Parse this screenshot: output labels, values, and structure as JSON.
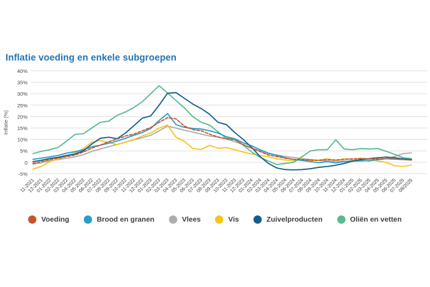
{
  "chart_data": {
    "type": "line",
    "title": "Inflatie voeding en enkele subgroepen",
    "xlabel": "",
    "ylabel": "Inflatie (%)",
    "ylim": [
      -5,
      40
    ],
    "yticks": [
      40,
      35,
      30,
      25,
      20,
      15,
      10,
      5,
      0,
      -5
    ],
    "ytick_labels": [
      "40%",
      "35%",
      "30%",
      "25%",
      "20%",
      "15%",
      "10%",
      "5%",
      "0",
      "-5%"
    ],
    "grid": true,
    "legend_position": "bottom",
    "categories": [
      "11-2021",
      "12-2021",
      "01-2022",
      "02-2022",
      "03-2022",
      "04-2022",
      "05-2022",
      "06-2022",
      "07-2022",
      "08-2022",
      "09-2022",
      "10-2022",
      "11-2022",
      "12-2022",
      "01-2023",
      "02-2023",
      "03-2023",
      "04-2023",
      "05-2023",
      "06-2023",
      "07-2023",
      "08-2023",
      "09-2023",
      "10-2023",
      "11-2023",
      "12-2023",
      "01-2024",
      "02-2024",
      "03-2024",
      "04-2024",
      "05-2024",
      "06-2024",
      "07-2024",
      "08-2024",
      "09-2024",
      "10-2024",
      "11-2024",
      "12-2024",
      "01-2025",
      "02-2025",
      "03-2025",
      "04-2025",
      "05-2025",
      "06-2025",
      "07-2025",
      "08/2025"
    ],
    "series": [
      {
        "name": "Voeding",
        "color": "#C4562B",
        "dashed": true,
        "values": [
          -0.5,
          0.3,
          1.2,
          1.8,
          2.5,
          3.2,
          4.5,
          6.2,
          7.5,
          9.0,
          10.2,
          11.5,
          12.3,
          13.8,
          15.2,
          17.5,
          19.5,
          19.0,
          15.8,
          14.3,
          13.8,
          12.3,
          11.1,
          10.3,
          9.8,
          7.7,
          6.1,
          4.7,
          3.2,
          2.5,
          1.8,
          1.3,
          1.2,
          1.0,
          0.8,
          1.2,
          1.0,
          1.3,
          1.5,
          1.7,
          1.5,
          1.4,
          1.6,
          1.4,
          1.2,
          1.0
        ]
      },
      {
        "name": "Brood en granen",
        "color": "#289DC8",
        "dashed": false,
        "values": [
          1.3,
          1.8,
          2.4,
          3.0,
          4.0,
          4.6,
          5.5,
          6.8,
          7.5,
          8.3,
          9.3,
          10.5,
          11.8,
          13.0,
          14.8,
          18.3,
          21.3,
          16.5,
          15.3,
          14.8,
          14.5,
          13.8,
          12.8,
          11.2,
          10.3,
          8.5,
          7.2,
          5.5,
          4.0,
          3.0,
          2.0,
          1.2,
          0.8,
          0.3,
          -0.2,
          0.3,
          -0.3,
          0.3,
          0.6,
          0.8,
          0.6,
          1.2,
          1.6,
          1.4,
          1.2,
          1.0
        ]
      },
      {
        "name": "Vlees",
        "color": "#ACACAC",
        "dashed": false,
        "values": [
          -0.8,
          -0.2,
          0.7,
          1.2,
          1.8,
          2.4,
          3.3,
          4.8,
          5.8,
          6.8,
          7.8,
          8.8,
          9.8,
          10.8,
          11.8,
          13.8,
          15.8,
          15.0,
          14.0,
          13.2,
          12.3,
          11.5,
          11.0,
          10.2,
          9.0,
          7.7,
          6.3,
          5.0,
          3.8,
          3.2,
          2.6,
          2.1,
          1.6,
          1.2,
          0.8,
          0.6,
          0.4,
          0.5,
          0.4,
          0.5,
          0.8,
          1.1,
          1.6,
          2.5,
          3.8,
          4.1
        ]
      },
      {
        "name": "Vis",
        "color": "#F5C51C",
        "dashed": false,
        "values": [
          -3.0,
          -1.8,
          0.3,
          1.5,
          2.8,
          4.0,
          6.0,
          8.8,
          9.5,
          8.7,
          7.7,
          8.8,
          10.0,
          11.5,
          12.8,
          15.0,
          16.3,
          11.0,
          9.2,
          6.0,
          5.6,
          7.4,
          6.1,
          6.4,
          5.5,
          4.5,
          3.6,
          3.0,
          2.4,
          1.5,
          1.0,
          0.6,
          1.4,
          0.6,
          1.0,
          1.5,
          0.8,
          1.5,
          1.0,
          1.7,
          1.2,
          0.5,
          0.0,
          -1.5,
          -1.8,
          -1.2
        ]
      },
      {
        "name": "Zuivelproducten",
        "color": "#135E8E",
        "dashed": false,
        "values": [
          0.3,
          0.9,
          1.7,
          2.2,
          3.0,
          3.6,
          5.0,
          8.0,
          10.5,
          11.0,
          10.3,
          12.8,
          16.0,
          19.3,
          20.3,
          25.0,
          30.2,
          30.5,
          28.0,
          25.5,
          23.5,
          21.0,
          17.5,
          16.5,
          13.0,
          10.0,
          6.5,
          2.5,
          -0.5,
          -2.5,
          -3.2,
          -3.3,
          -3.2,
          -2.8,
          -2.2,
          -1.8,
          -1.3,
          -0.5,
          0.5,
          1.2,
          1.6,
          2.0,
          2.3,
          2.0,
          1.5,
          1.2
        ]
      },
      {
        "name": "Oliën en vetten",
        "color": "#57BA91",
        "dashed": false,
        "values": [
          3.8,
          4.8,
          5.5,
          6.5,
          9.3,
          12.2,
          12.5,
          15.0,
          17.5,
          18.0,
          20.5,
          22.0,
          24.0,
          26.5,
          30.0,
          33.5,
          30.3,
          27.0,
          23.8,
          20.0,
          17.5,
          16.3,
          13.3,
          10.5,
          10.0,
          7.5,
          4.5,
          2.2,
          0.5,
          -1.0,
          -0.5,
          0.0,
          2.5,
          5.0,
          5.5,
          5.5,
          9.8,
          5.8,
          5.5,
          6.0,
          5.8,
          6.0,
          4.8,
          3.5,
          2.0,
          1.6
        ]
      }
    ]
  }
}
